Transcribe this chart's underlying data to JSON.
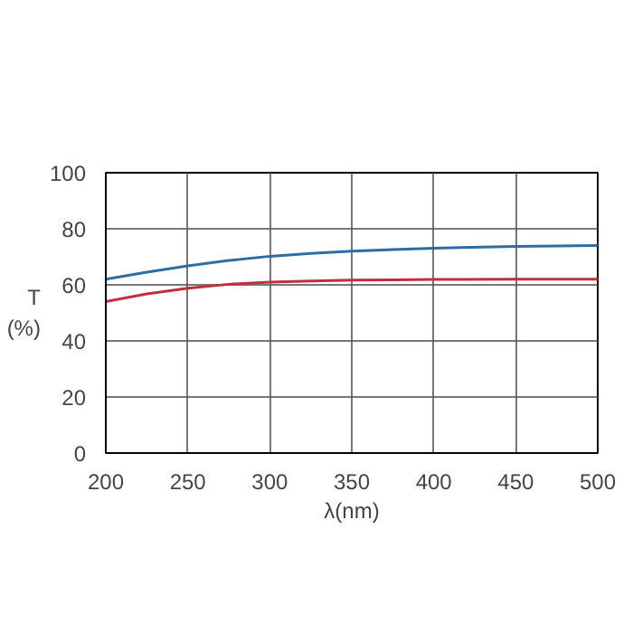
{
  "chart_data": {
    "type": "line",
    "xlabel": "λ(nm)",
    "ylabel": "T\n(%)",
    "xlim": [
      200,
      500
    ],
    "ylim": [
      0,
      100
    ],
    "xticks": [
      200,
      250,
      300,
      350,
      400,
      450,
      500
    ],
    "yticks": [
      0,
      20,
      40,
      60,
      80,
      100
    ],
    "grid": true,
    "x": [
      200,
      225,
      250,
      275,
      300,
      325,
      350,
      375,
      400,
      450,
      500
    ],
    "series": [
      {
        "color": "#2e6da4",
        "values": [
          62,
          64.5,
          66.8,
          68.7,
          70.2,
          71.2,
          72,
          72.6,
          73.1,
          73.7,
          74
        ]
      },
      {
        "color": "#c0303a",
        "values": [
          54,
          56.8,
          58.8,
          60.2,
          61,
          61.4,
          61.7,
          61.8,
          61.9,
          62,
          62
        ]
      }
    ]
  }
}
